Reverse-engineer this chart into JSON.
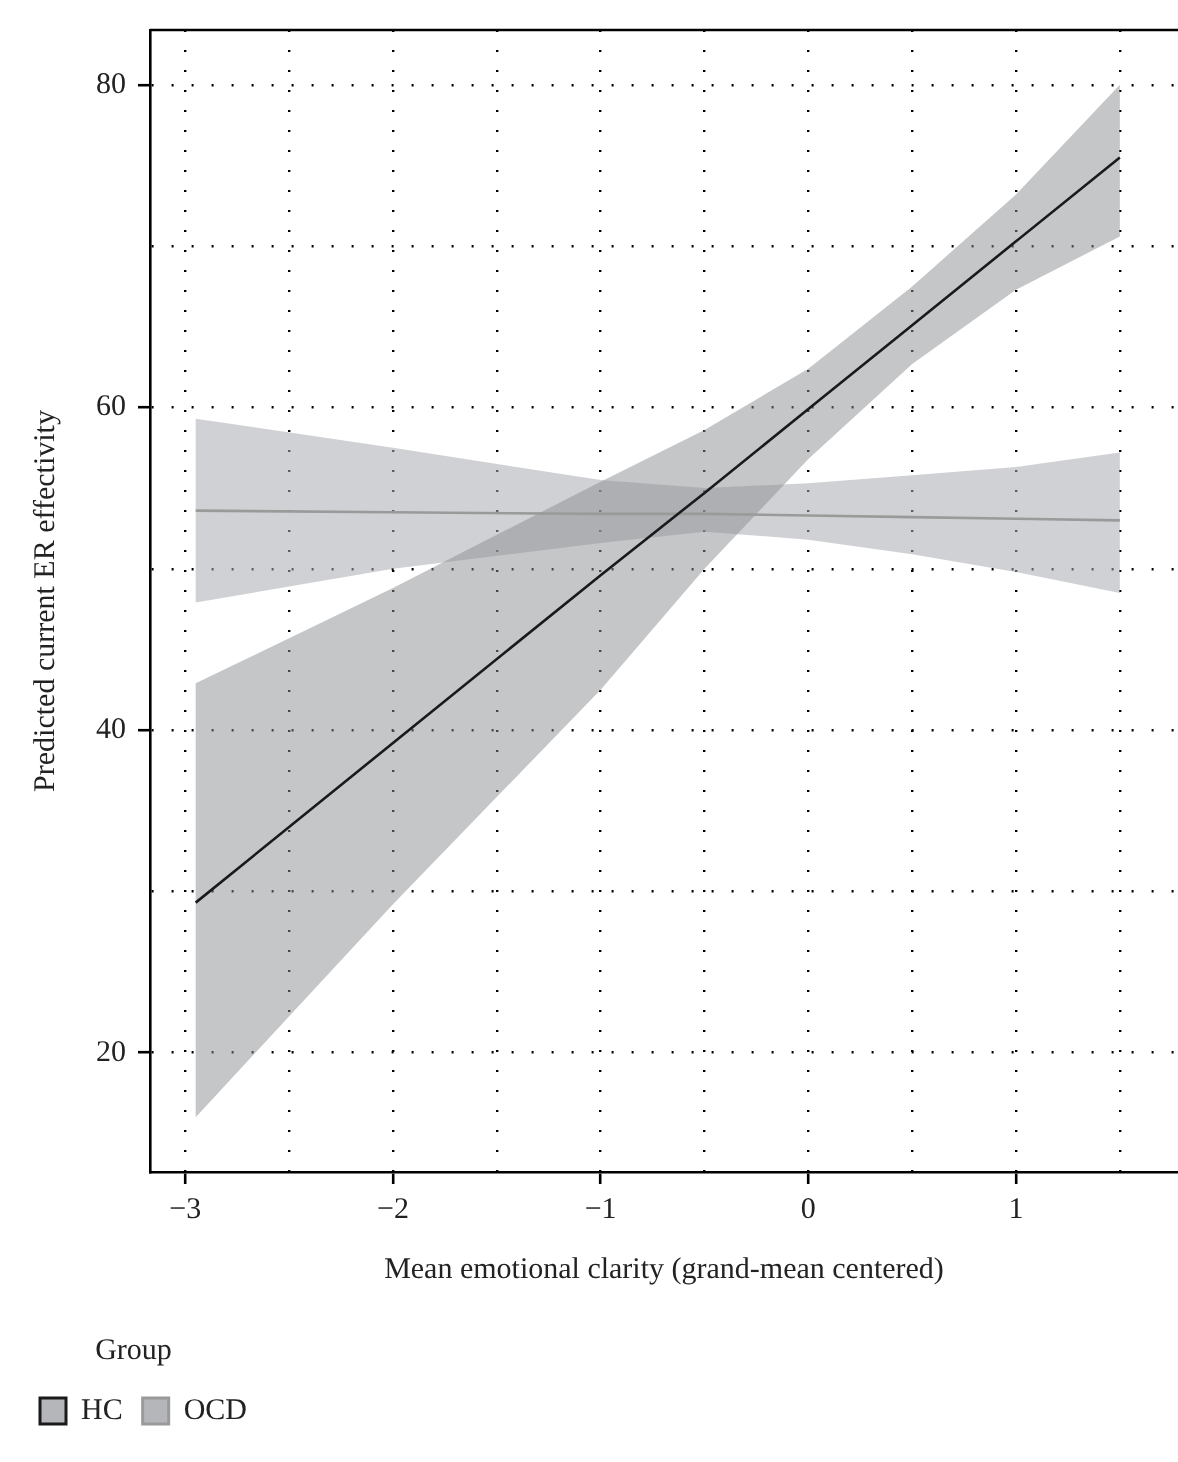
{
  "chart_data": {
    "type": "line",
    "xlabel": "Mean emotional clarity (grand-mean centered)",
    "ylabel": "Predicted current ER effectivity",
    "legend_title": "Group",
    "xlim": [
      -3.17,
      1.78
    ],
    "ylim": [
      12.6,
      83.4
    ],
    "xticks": [
      -3,
      {
        "value": -2.5,
        "label": null
      },
      -2,
      {
        "value": -1.5,
        "label": null
      },
      -1,
      {
        "value": -0.5,
        "label": null
      },
      0,
      {
        "value": 0.5,
        "label": null
      },
      1,
      {
        "value": 1.5,
        "label": null
      }
    ],
    "yticks": [
      20,
      {
        "value": 30,
        "label": null
      },
      40,
      {
        "value": 50,
        "label": null
      },
      60,
      {
        "value": 70,
        "label": null
      },
      80
    ],
    "grid": true,
    "legend": "bottom left",
    "marker": "none",
    "line_style": "solid",
    "series": [
      {
        "name": "HC",
        "color": "#1a1a1a",
        "x": [
          -2.95,
          -2,
          -1,
          -0.5,
          0,
          0.5,
          1,
          1.5
        ],
        "values": [
          29.3,
          39.2,
          49.6,
          54.7,
          59.9,
          65.1,
          70.3,
          75.5
        ],
        "lower": [
          16,
          29.2,
          42.5,
          50,
          56.8,
          62.7,
          67.3,
          70.6
        ],
        "upper": [
          42.9,
          48.8,
          55.4,
          58.6,
          62.4,
          67.5,
          73.2,
          80
        ]
      },
      {
        "name": "OCD",
        "color": "#9a9a9a",
        "x": [
          -2.95,
          -2,
          -1,
          -0.5,
          0,
          0.5,
          1,
          1.5
        ],
        "values": [
          53.6,
          53.5,
          53.4,
          53.4,
          53.3,
          53.2,
          53.1,
          53.0
        ],
        "lower": [
          47.9,
          50,
          51.6,
          52.3,
          51.8,
          50.9,
          49.8,
          48.5
        ],
        "upper": [
          59.3,
          57.5,
          55.5,
          55.0,
          55.3,
          55.8,
          56.3,
          57.2
        ]
      }
    ]
  }
}
